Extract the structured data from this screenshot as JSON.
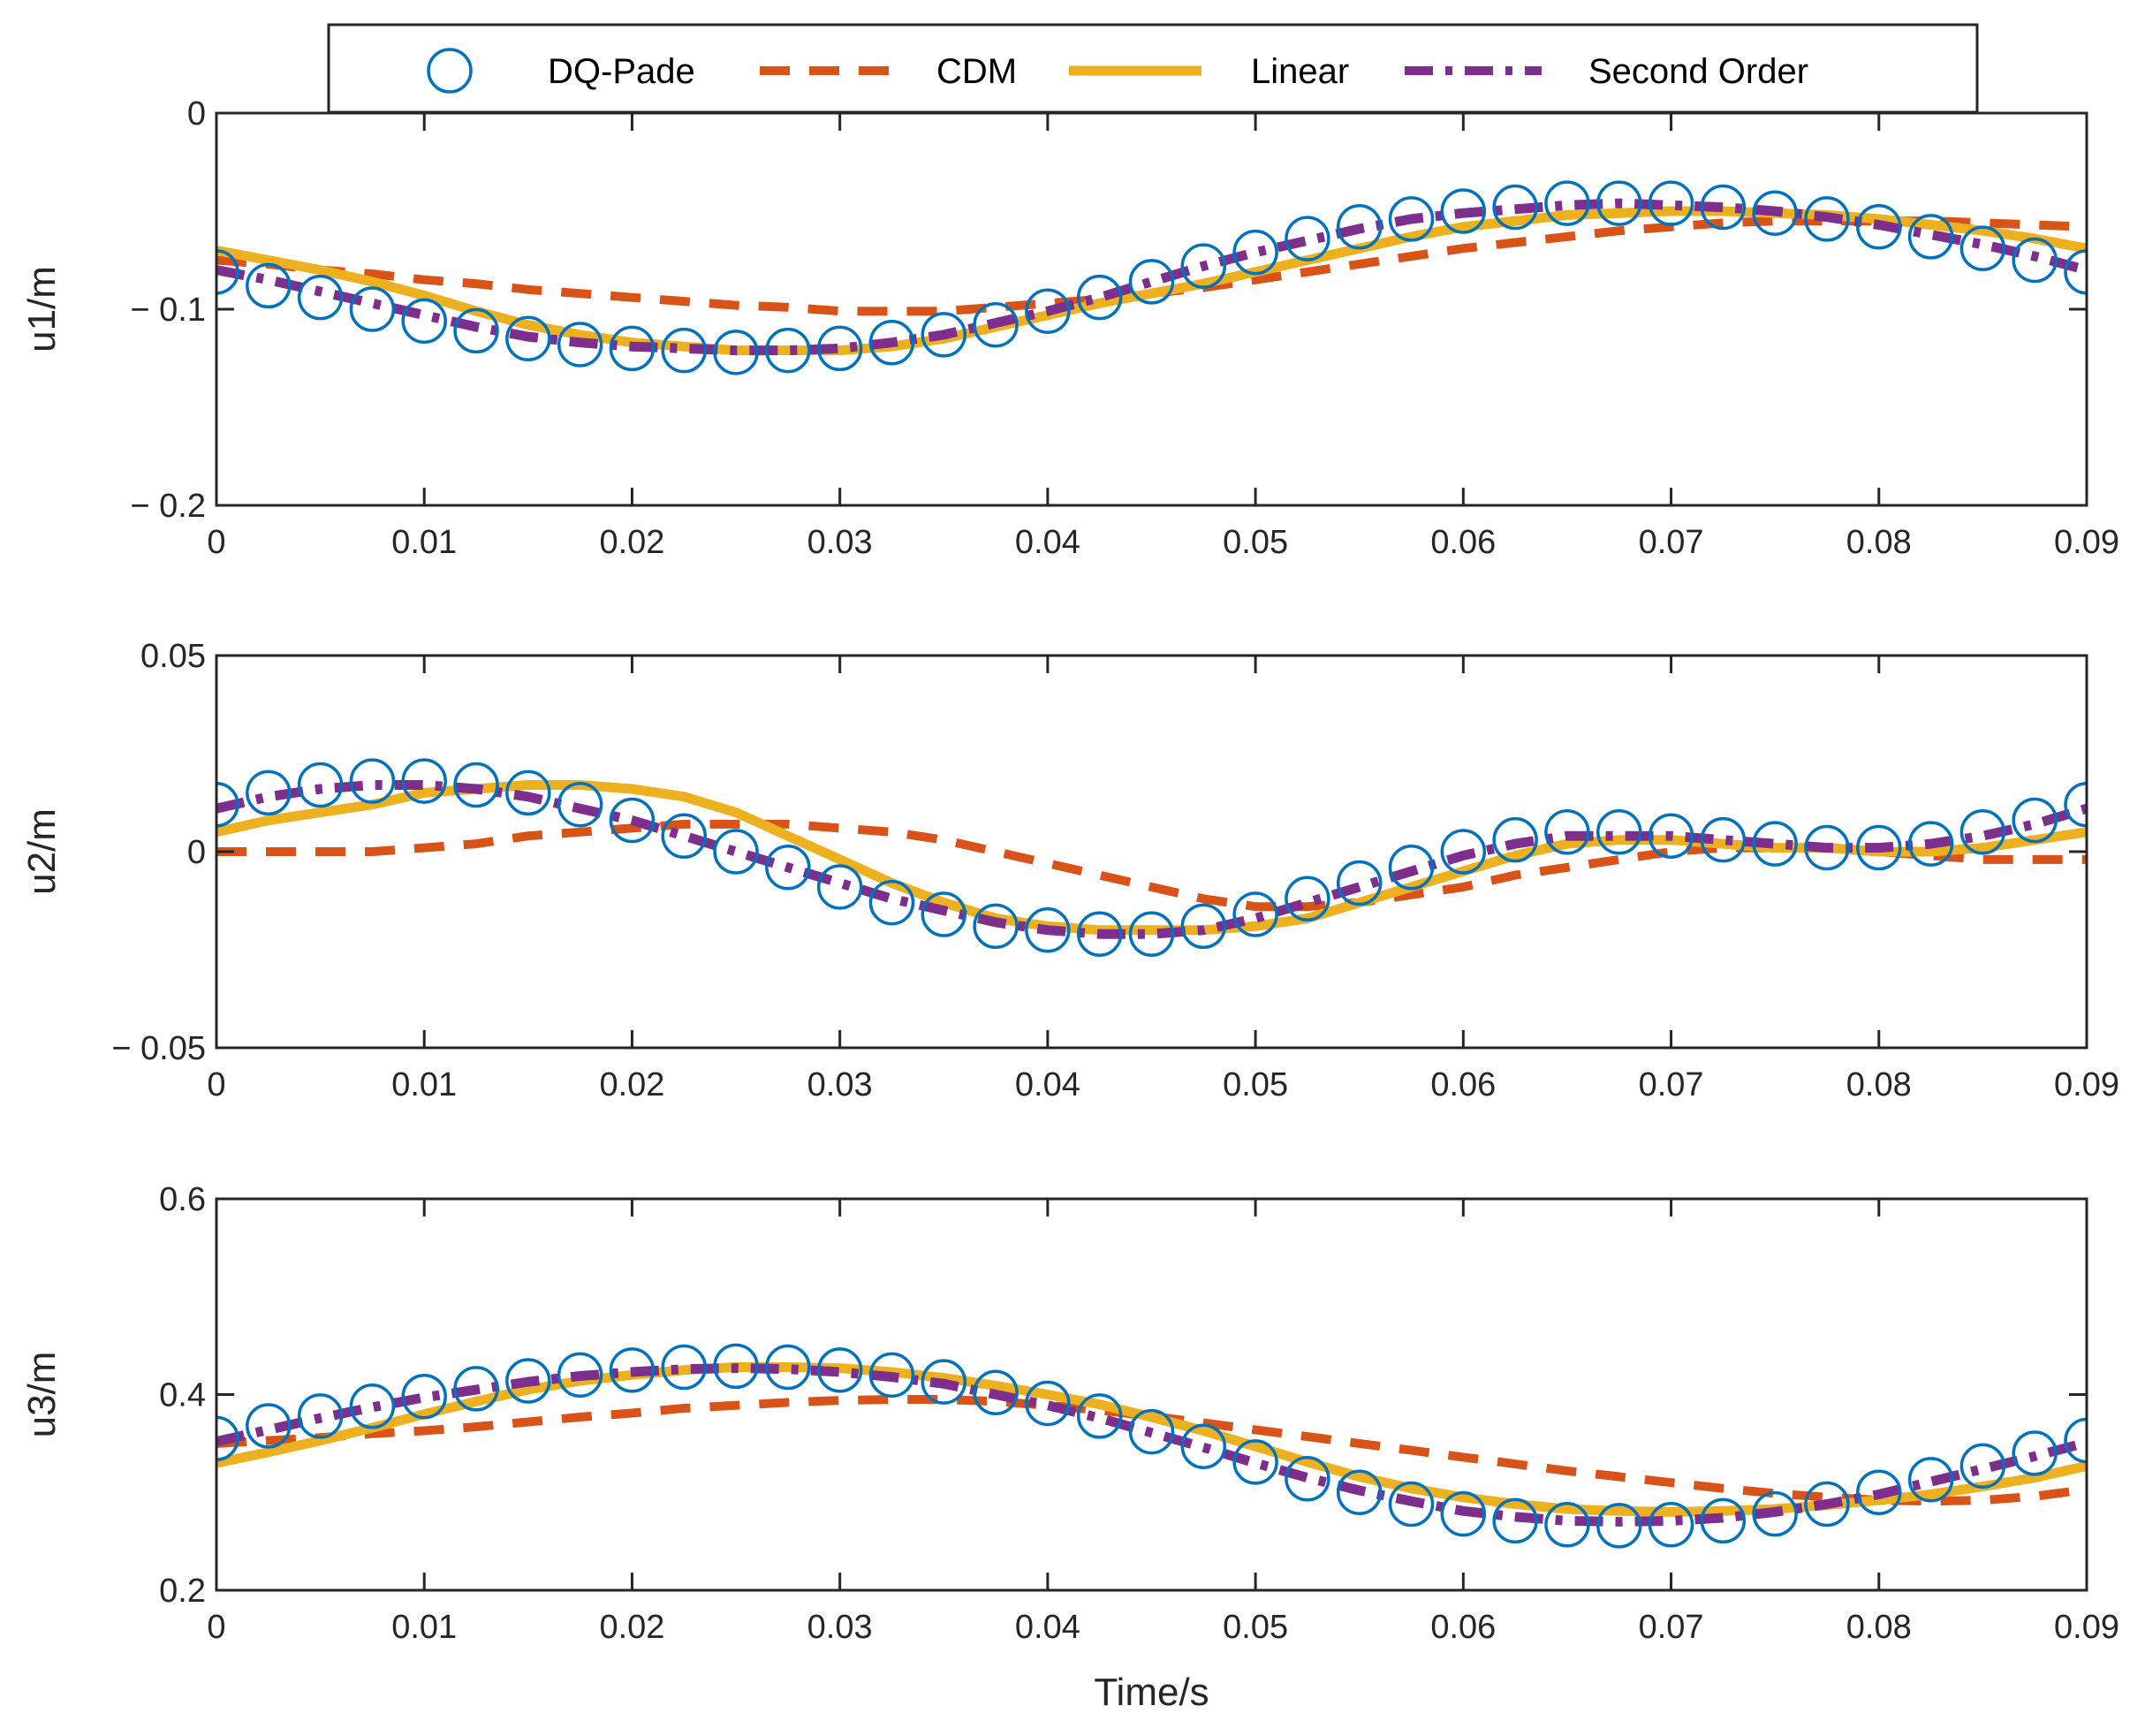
{
  "chart_data": {
    "type": "line",
    "xlabel": "Time/s",
    "xlim": [
      0,
      0.09
    ],
    "x_ticks": [
      0,
      0.01,
      0.02,
      0.03,
      0.04,
      0.05,
      0.06,
      0.07,
      0.08,
      0.09
    ],
    "x_tick_labels": [
      "0",
      "0.01",
      "0.02",
      "0.03",
      "0.04",
      "0.05",
      "0.06",
      "0.07",
      "0.08",
      "0.09"
    ],
    "legend": {
      "placement": "top-center",
      "entries": [
        {
          "name": "DQ-Pade",
          "style": "circle-markers",
          "color": "#0072BD"
        },
        {
          "name": "CDM",
          "style": "dashed",
          "color": "#D95319"
        },
        {
          "name": "Linear",
          "style": "solid",
          "color": "#EDB120"
        },
        {
          "name": "Second Order",
          "style": "dash-dot",
          "color": "#7E2F8E"
        }
      ]
    },
    "grid": false,
    "x": [
      0,
      0.0025,
      0.005,
      0.0075,
      0.01,
      0.0125,
      0.015,
      0.0175,
      0.02,
      0.0225,
      0.025,
      0.0275,
      0.03,
      0.0325,
      0.035,
      0.0375,
      0.04,
      0.0425,
      0.045,
      0.0475,
      0.05,
      0.0525,
      0.055,
      0.0575,
      0.06,
      0.0625,
      0.065,
      0.0675,
      0.07,
      0.0725,
      0.075,
      0.0775,
      0.08,
      0.0825,
      0.085,
      0.0875,
      0.09
    ],
    "subplots": [
      {
        "ylabel": "u1/m",
        "ylim": [
          -0.2,
          0
        ],
        "y_ticks": [
          -0.2,
          -0.1,
          0
        ],
        "y_tick_labels": [
          "− 0.2",
          "− 0.1",
          "0"
        ],
        "series": [
          {
            "name": "DQ-Pade",
            "values": [
              -0.081,
              -0.088,
              -0.094,
              -0.1,
              -0.106,
              -0.111,
              -0.115,
              -0.118,
              -0.12,
              -0.121,
              -0.122,
              -0.121,
              -0.12,
              -0.117,
              -0.113,
              -0.108,
              -0.101,
              -0.094,
              -0.086,
              -0.078,
              -0.071,
              -0.064,
              -0.058,
              -0.054,
              -0.05,
              -0.048,
              -0.046,
              -0.046,
              -0.046,
              -0.048,
              -0.051,
              -0.054,
              -0.058,
              -0.063,
              -0.069,
              -0.075,
              -0.081
            ]
          },
          {
            "name": "CDM",
            "values": [
              -0.075,
              -0.077,
              -0.08,
              -0.082,
              -0.085,
              -0.087,
              -0.09,
              -0.092,
              -0.094,
              -0.096,
              -0.098,
              -0.099,
              -0.101,
              -0.101,
              -0.101,
              -0.099,
              -0.097,
              -0.095,
              -0.092,
              -0.089,
              -0.085,
              -0.081,
              -0.077,
              -0.073,
              -0.069,
              -0.066,
              -0.063,
              -0.06,
              -0.058,
              -0.056,
              -0.055,
              -0.055,
              -0.055,
              -0.055,
              -0.056,
              -0.057,
              -0.058
            ]
          },
          {
            "name": "Linear",
            "values": [
              -0.07,
              -0.075,
              -0.08,
              -0.086,
              -0.093,
              -0.101,
              -0.108,
              -0.113,
              -0.117,
              -0.119,
              -0.121,
              -0.121,
              -0.121,
              -0.119,
              -0.115,
              -0.109,
              -0.103,
              -0.097,
              -0.092,
              -0.087,
              -0.081,
              -0.075,
              -0.069,
              -0.063,
              -0.058,
              -0.055,
              -0.052,
              -0.051,
              -0.05,
              -0.05,
              -0.051,
              -0.052,
              -0.054,
              -0.057,
              -0.06,
              -0.064,
              -0.069
            ]
          },
          {
            "name": "Second Order",
            "values": [
              -0.08,
              -0.085,
              -0.091,
              -0.097,
              -0.103,
              -0.109,
              -0.114,
              -0.117,
              -0.119,
              -0.12,
              -0.121,
              -0.121,
              -0.12,
              -0.117,
              -0.113,
              -0.107,
              -0.101,
              -0.094,
              -0.086,
              -0.078,
              -0.071,
              -0.065,
              -0.059,
              -0.054,
              -0.051,
              -0.049,
              -0.047,
              -0.046,
              -0.047,
              -0.048,
              -0.05,
              -0.053,
              -0.057,
              -0.062,
              -0.067,
              -0.073,
              -0.08
            ]
          }
        ]
      },
      {
        "ylabel": "u2/m",
        "ylim": [
          -0.05,
          0.05
        ],
        "y_ticks": [
          -0.05,
          0,
          0.05
        ],
        "y_tick_labels": [
          "− 0.05",
          "0",
          "0.05"
        ],
        "series": [
          {
            "name": "DQ-Pade",
            "values": [
              0.012,
              0.015,
              0.017,
              0.018,
              0.018,
              0.017,
              0.015,
              0.012,
              0.008,
              0.004,
              0.0,
              -0.004,
              -0.009,
              -0.013,
              -0.016,
              -0.019,
              -0.02,
              -0.021,
              -0.021,
              -0.019,
              -0.016,
              -0.012,
              -0.008,
              -0.004,
              0.0,
              0.003,
              0.005,
              0.005,
              0.004,
              0.003,
              0.002,
              0.001,
              0.001,
              0.002,
              0.005,
              0.008,
              0.012
            ]
          },
          {
            "name": "CDM",
            "values": [
              0.0,
              0.0,
              0.0,
              0.0,
              0.001,
              0.002,
              0.004,
              0.005,
              0.006,
              0.007,
              0.007,
              0.007,
              0.006,
              0.005,
              0.003,
              0.0,
              -0.003,
              -0.006,
              -0.009,
              -0.012,
              -0.014,
              -0.014,
              -0.013,
              -0.011,
              -0.009,
              -0.006,
              -0.004,
              -0.002,
              0.0,
              0.001,
              0.001,
              0.001,
              0.0,
              -0.001,
              -0.002,
              -0.002,
              -0.002
            ]
          },
          {
            "name": "Linear",
            "values": [
              0.005,
              0.008,
              0.01,
              0.012,
              0.015,
              0.016,
              0.017,
              0.017,
              0.016,
              0.014,
              0.01,
              0.004,
              -0.002,
              -0.008,
              -0.013,
              -0.017,
              -0.019,
              -0.02,
              -0.02,
              -0.02,
              -0.019,
              -0.017,
              -0.013,
              -0.009,
              -0.005,
              -0.001,
              0.002,
              0.003,
              0.003,
              0.002,
              0.001,
              0.001,
              0.0,
              0.0,
              0.001,
              0.003,
              0.005
            ]
          },
          {
            "name": "Second Order",
            "values": [
              0.011,
              0.014,
              0.016,
              0.017,
              0.017,
              0.016,
              0.014,
              0.011,
              0.008,
              0.004,
              0.0,
              -0.004,
              -0.008,
              -0.012,
              -0.015,
              -0.018,
              -0.02,
              -0.021,
              -0.021,
              -0.02,
              -0.017,
              -0.013,
              -0.009,
              -0.005,
              -0.001,
              0.002,
              0.004,
              0.004,
              0.004,
              0.003,
              0.002,
              0.001,
              0.001,
              0.002,
              0.004,
              0.007,
              0.011
            ]
          }
        ]
      },
      {
        "ylabel": "u3/m",
        "ylim": [
          0.2,
          0.6
        ],
        "y_ticks": [
          0.2,
          0.4,
          0.6
        ],
        "y_tick_labels": [
          "0.2",
          "0.4",
          "0.6"
        ],
        "series": [
          {
            "name": "DQ-Pade",
            "values": [
              0.355,
              0.368,
              0.378,
              0.388,
              0.398,
              0.406,
              0.414,
              0.42,
              0.425,
              0.428,
              0.429,
              0.428,
              0.425,
              0.42,
              0.413,
              0.402,
              0.391,
              0.378,
              0.362,
              0.347,
              0.331,
              0.314,
              0.3,
              0.288,
              0.278,
              0.271,
              0.267,
              0.266,
              0.267,
              0.271,
              0.278,
              0.288,
              0.3,
              0.313,
              0.327,
              0.34,
              0.353
            ]
          },
          {
            "name": "CDM",
            "values": [
              0.35,
              0.353,
              0.356,
              0.36,
              0.363,
              0.367,
              0.372,
              0.377,
              0.381,
              0.386,
              0.389,
              0.392,
              0.394,
              0.395,
              0.395,
              0.393,
              0.389,
              0.384,
              0.378,
              0.371,
              0.364,
              0.357,
              0.35,
              0.343,
              0.336,
              0.329,
              0.322,
              0.316,
              0.31,
              0.304,
              0.299,
              0.295,
              0.292,
              0.291,
              0.292,
              0.296,
              0.303
            ]
          },
          {
            "name": "Linear",
            "values": [
              0.33,
              0.341,
              0.353,
              0.366,
              0.38,
              0.393,
              0.405,
              0.414,
              0.42,
              0.425,
              0.428,
              0.428,
              0.427,
              0.423,
              0.417,
              0.409,
              0.4,
              0.39,
              0.377,
              0.363,
              0.347,
              0.331,
              0.316,
              0.304,
              0.295,
              0.288,
              0.283,
              0.281,
              0.28,
              0.281,
              0.283,
              0.287,
              0.292,
              0.298,
              0.306,
              0.315,
              0.327
            ]
          },
          {
            "name": "Second Order",
            "values": [
              0.352,
              0.364,
              0.376,
              0.387,
              0.397,
              0.405,
              0.413,
              0.419,
              0.423,
              0.426,
              0.427,
              0.426,
              0.423,
              0.418,
              0.411,
              0.4,
              0.389,
              0.376,
              0.361,
              0.346,
              0.33,
              0.315,
              0.302,
              0.291,
              0.281,
              0.275,
              0.271,
              0.27,
              0.271,
              0.274,
              0.28,
              0.288,
              0.298,
              0.311,
              0.324,
              0.337,
              0.351
            ]
          }
        ]
      }
    ]
  }
}
